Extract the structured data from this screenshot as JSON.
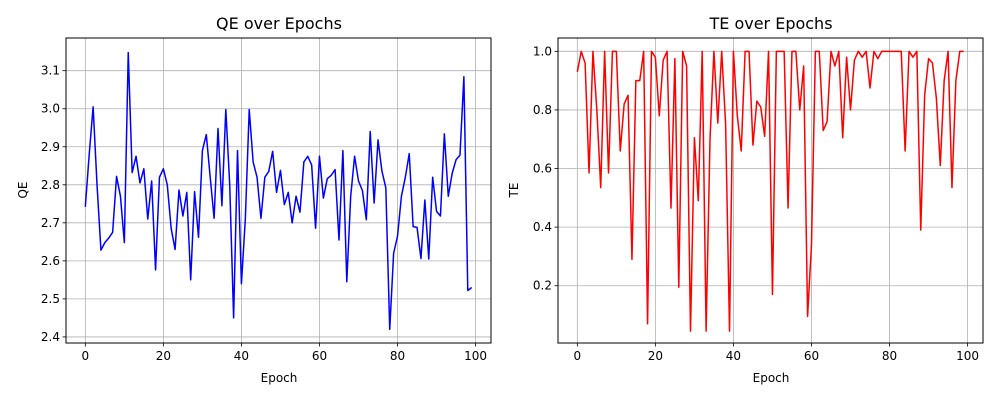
{
  "chart_data": [
    {
      "type": "line",
      "title": "QE over Epochs",
      "xlabel": "Epoch",
      "ylabel": "QE",
      "xlim": [
        -4.95,
        103.95
      ],
      "ylim": [
        2.384,
        3.186
      ],
      "xticks": [
        0,
        20,
        40,
        60,
        80,
        100
      ],
      "yticks": [
        2.4,
        2.5,
        2.6,
        2.7,
        2.8,
        2.9,
        3.0,
        3.1
      ],
      "xtick_labels": [
        "0",
        "20",
        "40",
        "60",
        "80",
        "100"
      ],
      "ytick_labels": [
        "2.4",
        "2.5",
        "2.6",
        "2.7",
        "2.8",
        "2.9",
        "3.0",
        "3.1"
      ],
      "grid": true,
      "color": "#0000ff",
      "series": [
        {
          "values": [
            2.742,
            2.88,
            3.005,
            2.8,
            2.628,
            2.648,
            2.66,
            2.675,
            2.822,
            2.77,
            2.648,
            3.148,
            2.832,
            2.875,
            2.805,
            2.842,
            2.71,
            2.81,
            2.576,
            2.82,
            2.842,
            2.8,
            2.685,
            2.63,
            2.786,
            2.718,
            2.78,
            2.55,
            2.782,
            2.662,
            2.89,
            2.932,
            2.82,
            2.712,
            2.948,
            2.745,
            2.998,
            2.8,
            2.45,
            2.89,
            2.54,
            2.71,
            2.998,
            2.86,
            2.82,
            2.712,
            2.82,
            2.835,
            2.888,
            2.78,
            2.838,
            2.748,
            2.78,
            2.7,
            2.77,
            2.728,
            2.86,
            2.875,
            2.852,
            2.686,
            2.875,
            2.765,
            2.816,
            2.825,
            2.84,
            2.655,
            2.89,
            2.545,
            2.77,
            2.875,
            2.81,
            2.785,
            2.708,
            2.94,
            2.752,
            2.918,
            2.836,
            2.792,
            2.42,
            2.62,
            2.665,
            2.77,
            2.82,
            2.882,
            2.69,
            2.688,
            2.606,
            2.76,
            2.605,
            2.82,
            2.73,
            2.718,
            2.934,
            2.77,
            2.83,
            2.866,
            2.878,
            3.084,
            2.522,
            2.53
          ]
        }
      ]
    },
    {
      "type": "line",
      "title": "TE over Epochs",
      "xlabel": "Epoch",
      "ylabel": "TE",
      "xlim": [
        -4.95,
        103.95
      ],
      "ylim": [
        0.0045,
        1.0455
      ],
      "xticks": [
        0,
        20,
        40,
        60,
        80,
        100
      ],
      "yticks": [
        0.2,
        0.4,
        0.6,
        0.8,
        1.0
      ],
      "xtick_labels": [
        "0",
        "20",
        "40",
        "60",
        "80",
        "100"
      ],
      "ytick_labels": [
        "0.2",
        "0.4",
        "0.6",
        "0.8",
        "1.0"
      ],
      "grid": true,
      "color": "#ff0000",
      "series": [
        {
          "values": [
            0.93,
            1.0,
            0.96,
            0.585,
            1.0,
            0.8,
            0.535,
            1.0,
            0.585,
            1.0,
            1.0,
            0.66,
            0.82,
            0.85,
            0.29,
            0.9,
            0.9,
            1.0,
            0.07,
            1.0,
            0.98,
            0.78,
            0.97,
            1.0,
            0.465,
            0.975,
            0.195,
            1.0,
            0.95,
            0.045,
            0.705,
            0.49,
            1.0,
            0.045,
            0.7,
            1.0,
            0.755,
            1.0,
            0.75,
            0.045,
            1.0,
            0.78,
            0.66,
            1.0,
            1.0,
            0.68,
            0.83,
            0.81,
            0.71,
            1.0,
            0.17,
            1.0,
            1.0,
            1.0,
            0.465,
            1.0,
            1.0,
            0.8,
            0.95,
            0.095,
            0.34,
            1.0,
            1.0,
            0.73,
            0.76,
            1.0,
            0.95,
            1.0,
            0.705,
            0.98,
            0.8,
            0.97,
            1.0,
            0.98,
            1.0,
            0.875,
            1.0,
            0.975,
            1.0,
            1.0,
            1.0,
            1.0,
            1.0,
            1.0,
            0.66,
            1.0,
            0.98,
            1.0,
            0.39,
            0.85,
            0.975,
            0.96,
            0.84,
            0.61,
            0.9,
            1.0,
            0.535,
            0.9,
            1.0,
            1.0
          ]
        }
      ]
    }
  ]
}
